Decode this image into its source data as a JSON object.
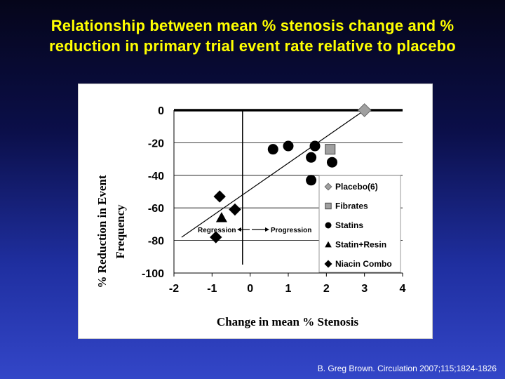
{
  "slide": {
    "title_line1": "Relationship between mean % stenosis change and %",
    "title_line2": "reduction in primary trial event rate relative to placebo",
    "citation": "B. Greg Brown. Circulation 2007;115;1824-1826"
  },
  "colors": {
    "title": "#ffff00",
    "placebo": "#a0a0a0",
    "fibrates": "#a0a0a0",
    "statins": "#000000",
    "statin_resin": "#000000",
    "niacin": "#000000"
  },
  "chart_data": {
    "type": "scatter",
    "xlabel": "Change in mean % Stenosis",
    "ylabel_line1": "% Reduction in Event",
    "ylabel_line2": "Frequency",
    "xlim": [
      -2,
      4
    ],
    "ylim": [
      -100,
      0
    ],
    "x_ticks": [
      "-2",
      "-1",
      "0",
      "1",
      "2",
      "3",
      "4"
    ],
    "y_ticks": [
      "0",
      "-20",
      "-40",
      "-60",
      "-80",
      "-100"
    ],
    "x_tick_values": [
      -2,
      -1,
      0,
      1,
      2,
      3,
      4
    ],
    "y_tick_values": [
      0,
      -20,
      -40,
      -60,
      -80,
      -100
    ],
    "grid": "horizontal",
    "legend_position": "right",
    "series": [
      {
        "name": "Placebo(6)",
        "marker": "diamond",
        "color": "#a0a0a0",
        "points": [
          [
            3.0,
            0
          ]
        ]
      },
      {
        "name": "Fibrates",
        "marker": "square",
        "color": "#a0a0a0",
        "points": [
          [
            2.1,
            -24
          ]
        ]
      },
      {
        "name": "Statins",
        "marker": "circle",
        "color": "#000000",
        "points": [
          [
            0.6,
            -24
          ],
          [
            1.0,
            -22
          ],
          [
            1.7,
            -22
          ],
          [
            1.6,
            -29
          ],
          [
            2.15,
            -32
          ],
          [
            1.6,
            -43
          ]
        ]
      },
      {
        "name": "Statin+Resin",
        "marker": "triangle",
        "color": "#000000",
        "points": [
          [
            -0.75,
            -66
          ]
        ]
      },
      {
        "name": "Niacin Combo",
        "marker": "diamond",
        "color": "#000000",
        "points": [
          [
            -0.8,
            -53
          ],
          [
            -0.4,
            -61
          ],
          [
            -0.9,
            -78
          ]
        ]
      }
    ],
    "trendline": {
      "x1": -1.8,
      "y1": -78,
      "x2": 3.0,
      "y2": 0
    },
    "vertical_line_x": -0.2,
    "annotations": {
      "regression": "Regression",
      "progression": "Progression"
    }
  }
}
